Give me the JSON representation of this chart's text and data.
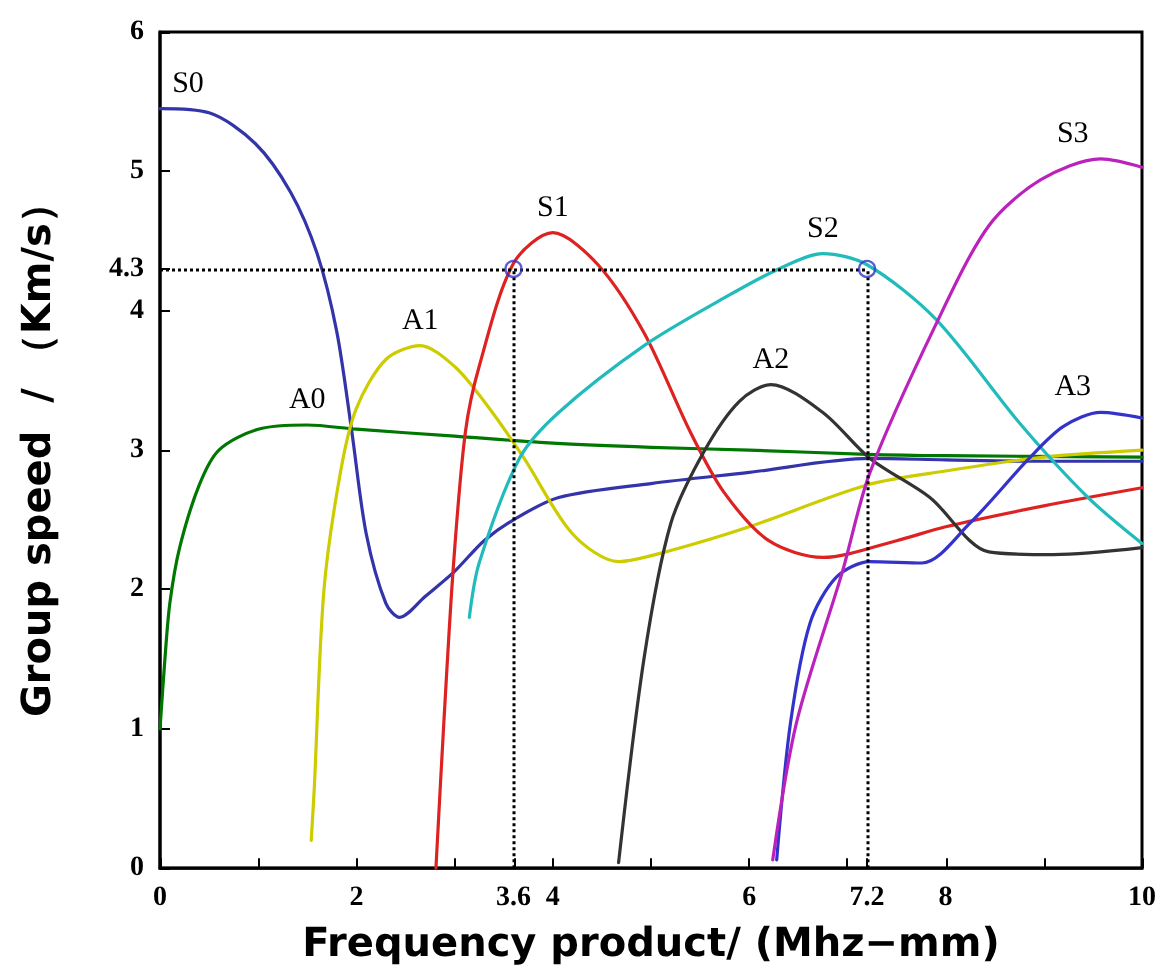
{
  "chart_data": {
    "type": "line",
    "xlabel": "Frequency product/ (Mhz−mm)",
    "ylabel": "Group speed  / （Km/s）",
    "xlim": [
      0,
      10
    ],
    "ylim": [
      0,
      6
    ],
    "xticks": [
      0,
      {
        "value": 1,
        "label": null
      },
      2,
      {
        "value": 3,
        "label": null
      },
      3.6,
      4,
      {
        "value": 5,
        "label": null
      },
      6,
      {
        "value": 7,
        "label": null
      },
      7.2,
      8,
      {
        "value": 9,
        "label": null
      },
      10
    ],
    "yticks": [
      0,
      1,
      2,
      3,
      4,
      4.3,
      5,
      6
    ],
    "grid": false,
    "legend": false,
    "marker": "none",
    "line_style": "solid",
    "series": [
      {
        "name": "S0",
        "color": "#3333aa",
        "x": [
          0,
          0.5,
          0.97,
          1.33,
          1.6,
          1.8,
          1.95,
          2.1,
          2.3,
          2.44,
          2.7,
          3,
          3.3,
          3.6,
          4.06,
          5,
          6,
          7.23,
          8,
          9,
          10
        ],
        "values": [
          5.45,
          5.42,
          5.2,
          4.85,
          4.41,
          3.85,
          3.15,
          2.4,
          1.9,
          1.8,
          1.95,
          2.13,
          2.35,
          2.5,
          2.66,
          2.76,
          2.84,
          2.94,
          2.93,
          2.92,
          2.92
        ]
      },
      {
        "name": "A0",
        "color": "#007700",
        "x": [
          0,
          0.05,
          0.1,
          0.2,
          0.4,
          0.6,
          1,
          1.5,
          2,
          3,
          4,
          5,
          6,
          7.2,
          8,
          10
        ],
        "values": [
          1.0,
          1.5,
          1.9,
          2.3,
          2.75,
          3.0,
          3.15,
          3.18,
          3.15,
          3.1,
          3.05,
          3.02,
          3.0,
          2.97,
          2.96,
          2.95
        ]
      },
      {
        "name": "A1",
        "color": "#cccc00",
        "x": [
          1.54,
          1.57,
          1.67,
          1.84,
          2,
          2.3,
          2.65,
          3,
          3.3,
          3.7,
          4.2,
          4.67,
          5.2,
          6,
          7.2,
          8,
          9,
          10
        ],
        "values": [
          0.2,
          0.56,
          2.0,
          2.85,
          3.3,
          3.65,
          3.75,
          3.6,
          3.35,
          2.95,
          2.4,
          2.2,
          2.28,
          2.45,
          2.75,
          2.85,
          2.95,
          3.0
        ]
      },
      {
        "name": "S1",
        "color": "#dd2222",
        "x": [
          2.81,
          2.89,
          2.99,
          3.11,
          3.25,
          3.6,
          4.0,
          4.46,
          4.93,
          5.4,
          5.74,
          6.2,
          6.75,
          7.5,
          8,
          9,
          10
        ],
        "values": [
          0,
          1.04,
          2.19,
          3.13,
          3.6,
          4.34,
          4.56,
          4.33,
          3.84,
          3.13,
          2.7,
          2.35,
          2.23,
          2.35,
          2.45,
          2.6,
          2.73
        ]
      },
      {
        "name": "S2",
        "color": "#22bbbb",
        "x": [
          3.15,
          3.25,
          3.66,
          4.06,
          4.93,
          5.74,
          6.3,
          6.75,
          7.2,
          7.9,
          8.77,
          9.45,
          10
        ],
        "values": [
          1.8,
          2.19,
          2.94,
          3.27,
          3.75,
          4.09,
          4.3,
          4.41,
          4.33,
          3.94,
          3.18,
          2.66,
          2.33
        ]
      },
      {
        "name": "A2",
        "color": "#333333",
        "x": [
          4.67,
          4.93,
          5.2,
          5.54,
          5.9,
          6.22,
          6.75,
          7.23,
          7.84,
          8.44,
          9.1,
          10
        ],
        "values": [
          0.04,
          1.51,
          2.47,
          2.99,
          3.35,
          3.47,
          3.27,
          2.94,
          2.66,
          2.27,
          2.25,
          2.3
        ]
      },
      {
        "name": "A3",
        "color": "#3333cc",
        "x": [
          6.28,
          6.42,
          6.62,
          6.89,
          7.23,
          7.76,
          8.24,
          8.85,
          9.2,
          9.58,
          10
        ],
        "values": [
          0.06,
          1.04,
          1.76,
          2.09,
          2.2,
          2.19,
          2.47,
          2.94,
          3.17,
          3.27,
          3.23
        ]
      },
      {
        "name": "S3",
        "color": "#bb22bb",
        "x": [
          6.24,
          6.48,
          6.95,
          7.23,
          7.9,
          8.44,
          8.97,
          9.58,
          10
        ],
        "values": [
          0.06,
          1.04,
          2.13,
          2.84,
          3.9,
          4.61,
          4.94,
          5.09,
          5.03
        ]
      },
      {
        "type": "scatter",
        "marker": "circle",
        "color": "#3333cc",
        "x": [
          3.6,
          7.2
        ],
        "values": [
          4.3,
          4.3
        ]
      }
    ],
    "ref_lines": [
      {
        "axis": "y",
        "value": 4.3,
        "color": "#000000",
        "line_style": "dotted"
      },
      {
        "axis": "x",
        "value": 3.6,
        "color": "#000000",
        "line_style": "dotted"
      },
      {
        "axis": "x",
        "value": 7.2,
        "color": "#000000",
        "line_style": "dotted"
      }
    ]
  }
}
